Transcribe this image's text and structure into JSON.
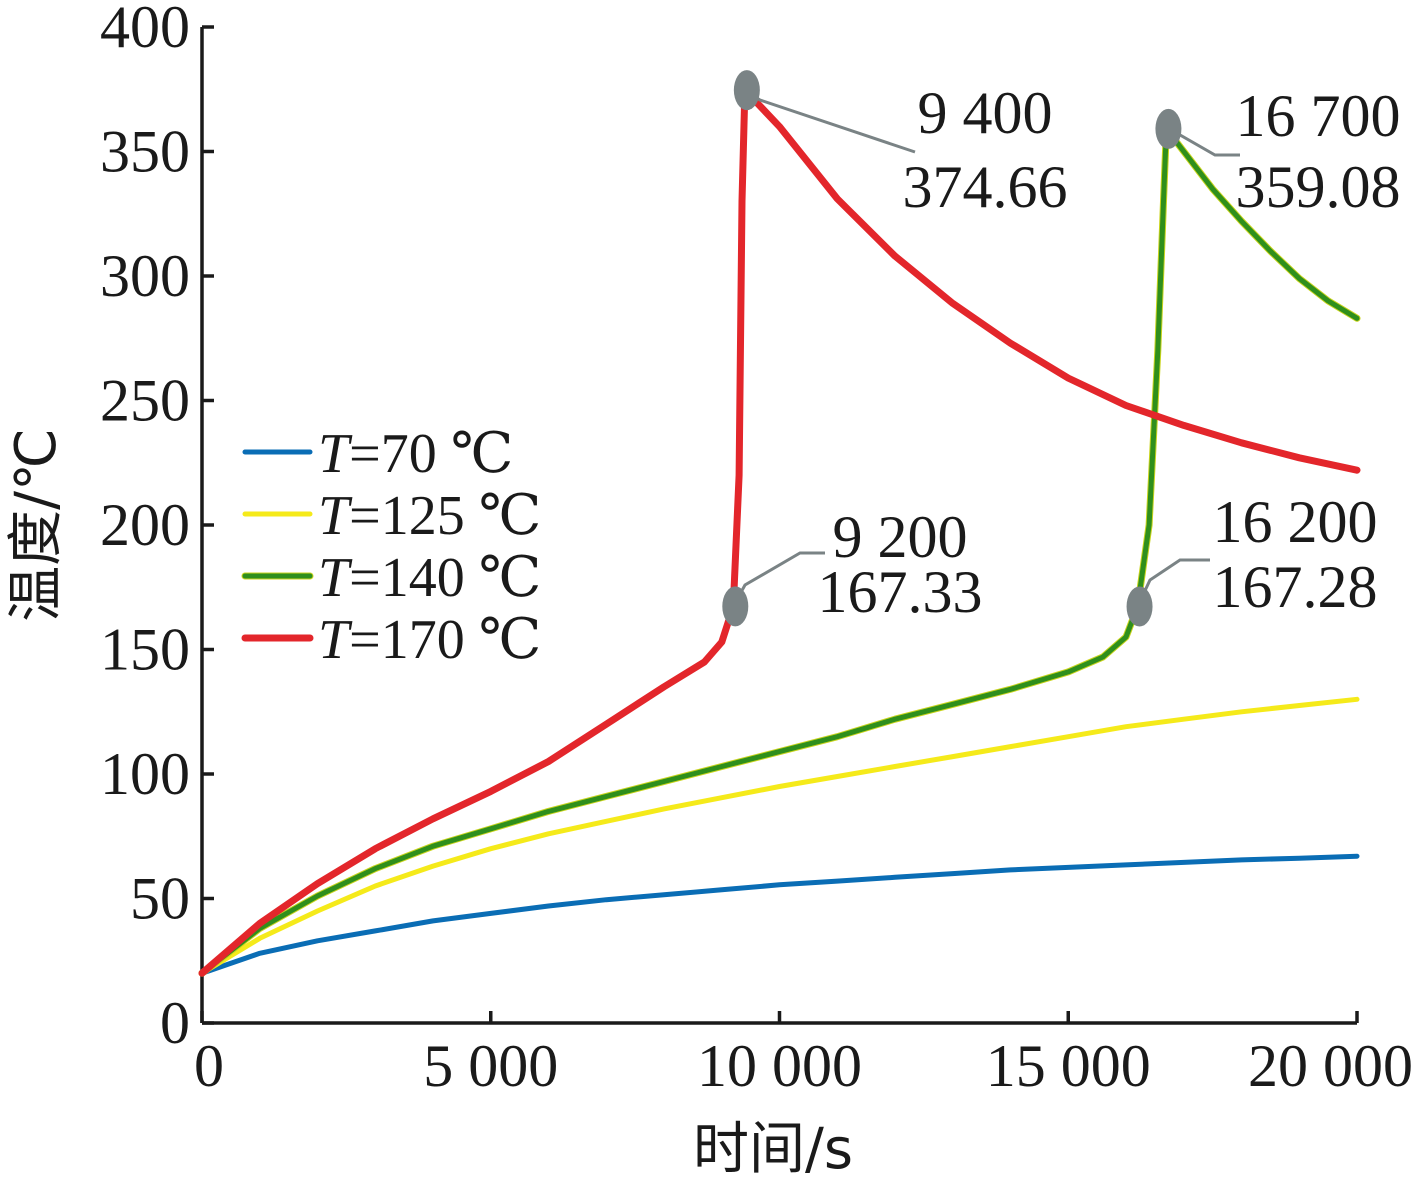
{
  "chart_data": {
    "type": "line",
    "xlabel": "时间/s",
    "ylabel": "温度/℃",
    "xlim": [
      0,
      20000
    ],
    "ylim": [
      0,
      400
    ],
    "x_ticks": [
      0,
      5000,
      10000,
      15000,
      20000
    ],
    "x_tick_labels": [
      "0",
      "5 000",
      "10 000",
      "15 000",
      "20 000"
    ],
    "y_ticks": [
      0,
      50,
      100,
      150,
      200,
      250,
      300,
      350,
      400
    ],
    "y_tick_labels": [
      "0",
      "50",
      "100",
      "150",
      "200",
      "250",
      "300",
      "350",
      "400"
    ],
    "grid": false,
    "legend_position": "left-middle",
    "series": [
      {
        "name": "T=70 ℃",
        "legend_var": "T",
        "legend_rest": "=70 ℃",
        "color": "#0a6db5",
        "x": [
          0,
          1000,
          2000,
          3000,
          4000,
          5000,
          6000,
          7000,
          8000,
          9000,
          10000,
          11000,
          12000,
          13000,
          14000,
          15000,
          16000,
          17000,
          18000,
          19000,
          20000
        ],
        "y": [
          20,
          28,
          33,
          37,
          41,
          44,
          47,
          49.5,
          51.5,
          53.5,
          55.5,
          57,
          58.5,
          60,
          61.5,
          62.5,
          63.5,
          64.5,
          65.5,
          66.2,
          67
        ]
      },
      {
        "name": "T=125 ℃",
        "legend_var": "T",
        "legend_rest": "=125 ℃",
        "color": "#f5ea1a",
        "x": [
          0,
          1000,
          2000,
          3000,
          4000,
          5000,
          6000,
          7000,
          8000,
          9000,
          10000,
          11000,
          12000,
          13000,
          14000,
          15000,
          16000,
          17000,
          18000,
          19000,
          20000
        ],
        "y": [
          20,
          34,
          45,
          55,
          63,
          70,
          76,
          81,
          86,
          90.5,
          95,
          99,
          103,
          107,
          111,
          115,
          119,
          122,
          125,
          127.5,
          130
        ]
      },
      {
        "name": "T=140 ℃",
        "legend_var": "T",
        "legend_rest": "=140 ℃",
        "color": "#2f8f1c",
        "x": [
          0,
          1000,
          2000,
          3000,
          4000,
          5000,
          6000,
          7000,
          8000,
          9000,
          10000,
          11000,
          12000,
          13000,
          14000,
          15000,
          15600,
          16000,
          16200,
          16400,
          16550,
          16650,
          16700,
          17000,
          17500,
          18000,
          18500,
          19000,
          19500,
          20000
        ],
        "y": [
          20,
          38,
          51,
          62,
          71,
          78,
          85,
          91,
          97,
          103,
          109,
          115,
          122,
          128,
          134,
          141,
          147,
          155,
          167.28,
          200,
          270,
          330,
          359.08,
          350,
          335,
          322,
          310,
          299,
          290,
          283
        ]
      },
      {
        "name": "T=170 ℃",
        "legend_var": "T",
        "legend_rest": "=170 ℃",
        "color": "#e3262b",
        "x": [
          0,
          1000,
          2000,
          3000,
          4000,
          5000,
          6000,
          7000,
          8000,
          8700,
          9000,
          9200,
          9300,
          9350,
          9400,
          10000,
          11000,
          12000,
          13000,
          14000,
          15000,
          16000,
          17000,
          18000,
          19000,
          20000
        ],
        "y": [
          20,
          40,
          56,
          70,
          82,
          93,
          105,
          120,
          135,
          145,
          153,
          167.33,
          220,
          330,
          374.66,
          360,
          331,
          308,
          289,
          273,
          259,
          248,
          240,
          233,
          227,
          222
        ]
      }
    ],
    "annotations": [
      {
        "series_index": 3,
        "x": 9400,
        "y": 374.66,
        "label_x": "9 400",
        "label_y": "374.66"
      },
      {
        "series_index": 3,
        "x": 9200,
        "y": 167.33,
        "label_x": "9 200",
        "label_y": "167.33"
      },
      {
        "series_index": 2,
        "x": 16700,
        "y": 359.08,
        "label_x": "16 700",
        "label_y": "359.08"
      },
      {
        "series_index": 2,
        "x": 16200,
        "y": 167.28,
        "label_x": "16 200",
        "label_y": "167.28"
      }
    ]
  }
}
